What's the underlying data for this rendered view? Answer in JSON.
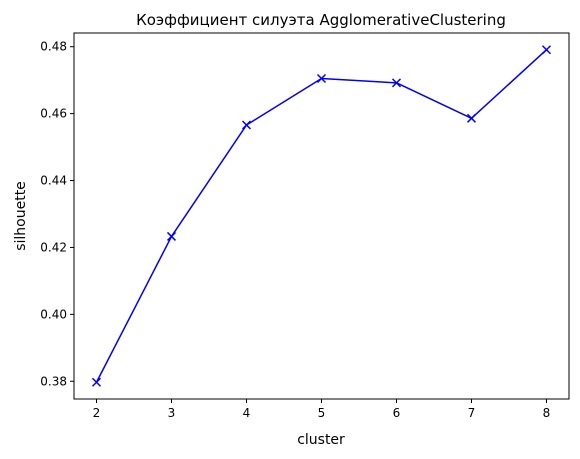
{
  "chart_data": {
    "type": "line",
    "title": "Коэффициент силуэта AgglomerativeClustering",
    "xlabel": "cluster",
    "ylabel": "silhouette",
    "x": [
      2,
      3,
      4,
      5,
      6,
      7,
      8
    ],
    "series": [
      {
        "values": [
          0.3797,
          0.4233,
          0.4566,
          0.4705,
          0.4692,
          0.4586,
          0.4791
        ],
        "color": "#0000ff",
        "marker": "x"
      }
    ],
    "xlim": [
      1.7,
      8.3
    ],
    "ylim": [
      0.3747,
      0.4841
    ],
    "xticks": [
      2,
      3,
      4,
      5,
      6,
      7,
      8
    ],
    "yticks": [
      0.38,
      0.4,
      0.42,
      0.44,
      0.46,
      0.48
    ],
    "ytick_labels": [
      "0.38",
      "0.40",
      "0.42",
      "0.44",
      "0.46",
      "0.48"
    ],
    "grid": false,
    "legend": false
  }
}
